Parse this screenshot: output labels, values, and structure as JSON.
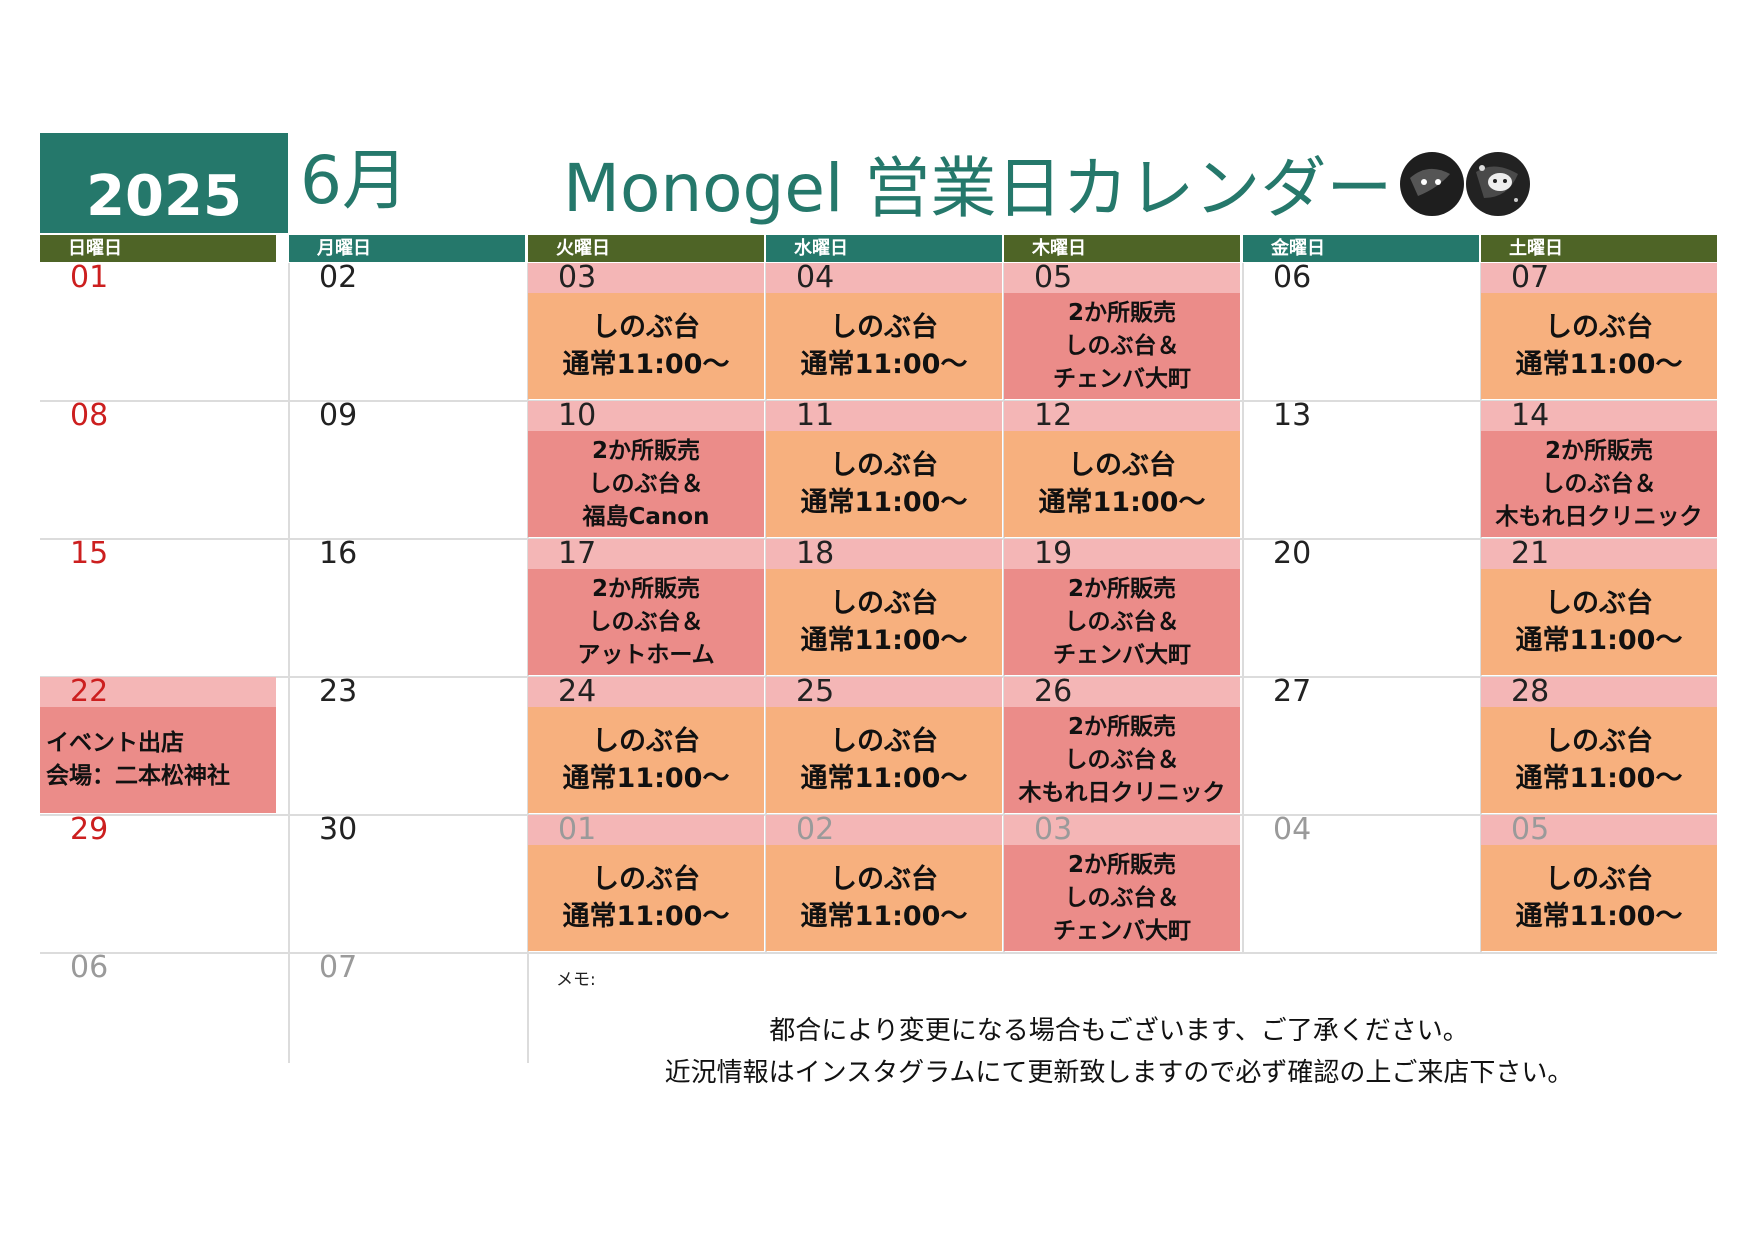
{
  "header": {
    "year": "2025",
    "month": "6月",
    "title": "Monogel 営業日カレンダー"
  },
  "weekdays": [
    "日曜日",
    "月曜日",
    "火曜日",
    "水曜日",
    "木曜日",
    "金曜日",
    "土曜日"
  ],
  "colors": {
    "teal": "#25786b",
    "olive": "#4e6426",
    "date_strip_pink": "#f4b6b6",
    "regular_day_orange": "#f7b07e",
    "two_location_red": "#eb8c89",
    "sunday_red": "#cc1f1f",
    "other_month_grey": "#9a9a9a"
  },
  "weeks": [
    [
      {
        "date": "01",
        "style": "sun"
      },
      {
        "date": "02"
      },
      {
        "date": "03",
        "type": "regular",
        "lines": [
          "しのぶ台",
          "通常11:00～"
        ]
      },
      {
        "date": "04",
        "type": "regular",
        "lines": [
          "しのぶ台",
          "通常11:00～"
        ]
      },
      {
        "date": "05",
        "type": "dual",
        "lines": [
          "2か所販売",
          "しのぶ台＆",
          "チェンバ大町"
        ]
      },
      {
        "date": "06"
      },
      {
        "date": "07",
        "type": "regular",
        "lines": [
          "しのぶ台",
          "通常11:00～"
        ]
      }
    ],
    [
      {
        "date": "08",
        "style": "sun"
      },
      {
        "date": "09"
      },
      {
        "date": "10",
        "type": "dual",
        "lines": [
          "2か所販売",
          "しのぶ台＆",
          "福島Canon"
        ]
      },
      {
        "date": "11",
        "type": "regular",
        "lines": [
          "しのぶ台",
          "通常11:00～"
        ]
      },
      {
        "date": "12",
        "type": "regular",
        "lines": [
          "しのぶ台",
          "通常11:00～"
        ]
      },
      {
        "date": "13"
      },
      {
        "date": "14",
        "type": "dual",
        "lines": [
          "2か所販売",
          "しのぶ台＆",
          "木もれ日クリニック"
        ]
      }
    ],
    [
      {
        "date": "15",
        "style": "sun"
      },
      {
        "date": "16"
      },
      {
        "date": "17",
        "type": "dual",
        "lines": [
          "2か所販売",
          "しのぶ台＆",
          "アットホーム"
        ]
      },
      {
        "date": "18",
        "type": "regular",
        "lines": [
          "しのぶ台",
          "通常11:00～"
        ]
      },
      {
        "date": "19",
        "type": "dual",
        "lines": [
          "2か所販売",
          "しのぶ台＆",
          "チェンバ大町"
        ]
      },
      {
        "date": "20"
      },
      {
        "date": "21",
        "type": "regular",
        "lines": [
          "しのぶ台",
          "通常11:00～"
        ]
      }
    ],
    [
      {
        "date": "22",
        "style": "sun",
        "type": "event",
        "lines": [
          "イベント出店",
          "会場：二本松神社"
        ]
      },
      {
        "date": "23"
      },
      {
        "date": "24",
        "type": "regular",
        "lines": [
          "しのぶ台",
          "通常11:00～"
        ]
      },
      {
        "date": "25",
        "type": "regular",
        "lines": [
          "しのぶ台",
          "通常11:00～"
        ]
      },
      {
        "date": "26",
        "type": "dual",
        "lines": [
          "2か所販売",
          "しのぶ台＆",
          "木もれ日クリニック"
        ]
      },
      {
        "date": "27"
      },
      {
        "date": "28",
        "type": "regular",
        "lines": [
          "しのぶ台",
          "通常11:00～"
        ]
      }
    ],
    [
      {
        "date": "29",
        "style": "sun"
      },
      {
        "date": "30"
      },
      {
        "date": "01",
        "style": "grey",
        "type": "regular",
        "lines": [
          "しのぶ台",
          "通常11:00～"
        ]
      },
      {
        "date": "02",
        "style": "grey",
        "type": "regular",
        "lines": [
          "しのぶ台",
          "通常11:00～"
        ]
      },
      {
        "date": "03",
        "style": "grey",
        "type": "dual",
        "lines": [
          "2か所販売",
          "しのぶ台＆",
          "チェンバ大町"
        ]
      },
      {
        "date": "04",
        "style": "grey"
      },
      {
        "date": "05",
        "style": "grey",
        "type": "regular",
        "lines": [
          "しのぶ台",
          "通常11:00～"
        ]
      }
    ],
    [
      {
        "date": "06",
        "style": "grey"
      },
      {
        "date": "07",
        "style": "grey"
      }
    ]
  ],
  "memo": {
    "label": "メモ:",
    "line1": "都合により変更になる場合もございます、ご了承ください。",
    "line2": "近況情報はインスタグラムにて更新致しますので必ず確認の上ご来店下さい。"
  }
}
